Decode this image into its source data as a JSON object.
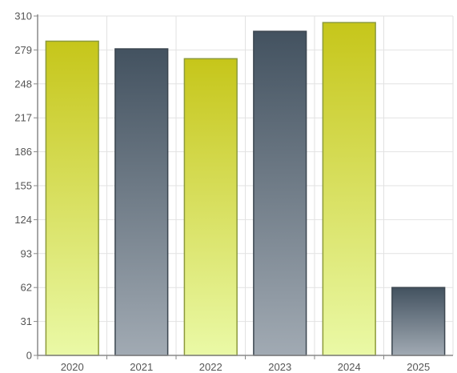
{
  "chart_data": {
    "type": "bar",
    "categories": [
      "2020",
      "2021",
      "2022",
      "2023",
      "2024",
      "2025"
    ],
    "values": [
      287,
      280,
      271,
      296,
      304,
      62
    ],
    "bar_styles": [
      "lime",
      "slate",
      "lime",
      "slate",
      "lime",
      "slate"
    ],
    "title": "",
    "xlabel": "",
    "ylabel": "",
    "ylim": [
      0,
      310
    ],
    "yticks": [
      0,
      31,
      62,
      93,
      124,
      155,
      186,
      217,
      248,
      279,
      310
    ],
    "grid": true,
    "legend": "none",
    "colors": {
      "lime_top": "#c6c61a",
      "lime_bottom": "#eaf9a6",
      "lime_border": "#8c9a3a",
      "slate_top": "#435260",
      "slate_bottom": "#a1aab3",
      "slate_border": "#3c4650"
    }
  }
}
